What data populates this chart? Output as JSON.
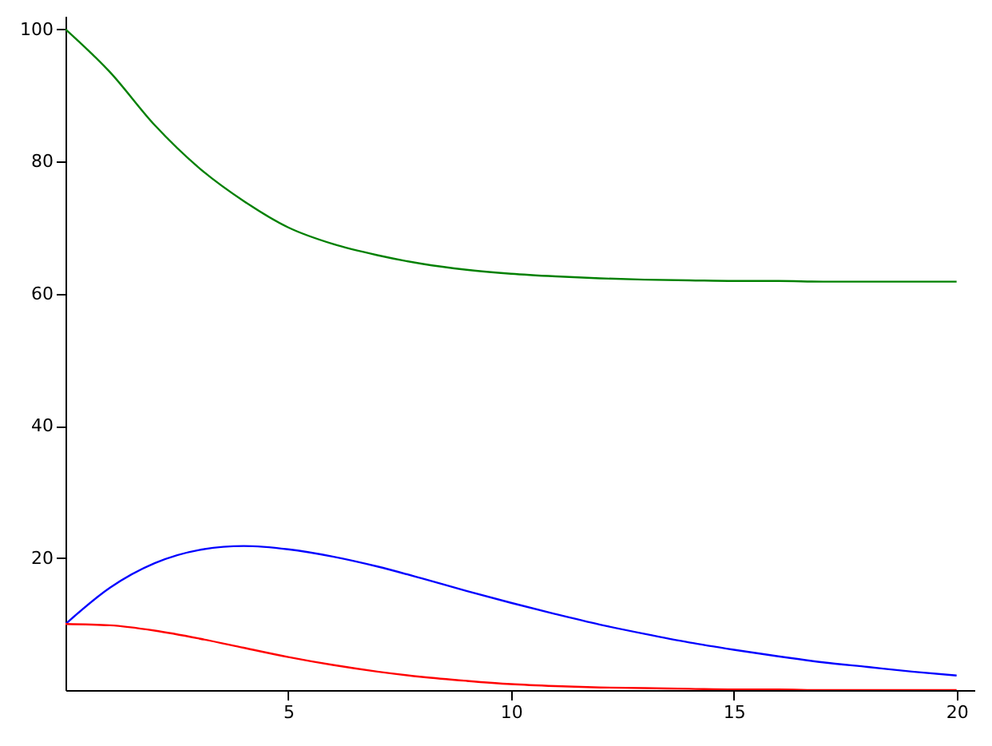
{
  "chart_data": {
    "type": "line",
    "x": [
      0,
      1,
      2,
      3,
      4,
      5,
      6,
      7,
      8,
      9,
      10,
      11,
      12,
      13,
      14,
      15,
      16,
      17,
      18,
      19,
      20
    ],
    "series": [
      {
        "color": "#008000",
        "values": [
          100,
          93.5,
          85.5,
          79,
          74,
          70,
          67.5,
          65.8,
          64.5,
          63.6,
          63,
          62.6,
          62.3,
          62.1,
          62,
          61.9,
          61.9,
          61.8,
          61.8,
          61.8,
          61.8
        ]
      },
      {
        "color": "#0000ff",
        "values": [
          10,
          15.5,
          19.2,
          21.2,
          21.8,
          21.3,
          20.2,
          18.7,
          16.9,
          15,
          13.2,
          11.5,
          9.9,
          8.5,
          7.2,
          6.1,
          5.1,
          4.2,
          3.5,
          2.8,
          2.2
        ]
      },
      {
        "color": "#ff0000",
        "values": [
          10,
          9.8,
          9,
          7.8,
          6.4,
          5,
          3.8,
          2.8,
          2,
          1.4,
          0.9,
          0.6,
          0.4,
          0.3,
          0.2,
          0.1,
          0.1,
          0,
          0,
          0,
          0
        ]
      }
    ],
    "xlim": [
      0,
      20.4
    ],
    "ylim": [
      0,
      102
    ],
    "xticks": [
      5,
      10,
      15,
      20
    ],
    "yticks": [
      20,
      40,
      60,
      80,
      100
    ],
    "grid": false
  }
}
